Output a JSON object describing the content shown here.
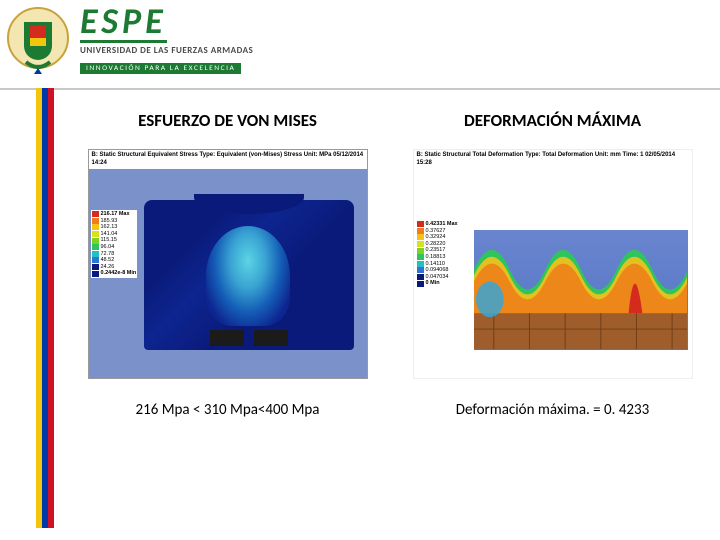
{
  "header": {
    "brand": "ESPE",
    "subtitle": "UNIVERSIDAD DE LAS FUERZAS ARMADAS",
    "tagline": "INNOVACIÓN PARA LA EXCELENCIA",
    "brand_color": "#1d7a33"
  },
  "stripe_colors": {
    "yellow": "#f3c60d",
    "blue": "#0038a8",
    "red": "#ce1126"
  },
  "left": {
    "title": "ESFUERZO DE VON MISES",
    "sim_header": "B: Static Structural\nEquivalent Stress\nType: Equivalent (von-Mises) Stress\nUnit: MPa\n05/12/2014 14:24",
    "legend": {
      "max_label": "216.17 Max",
      "min_label": "0.2442e-8 Min",
      "items": [
        {
          "color": "#d52b1e",
          "label": "216.17"
        },
        {
          "color": "#f07d1a",
          "label": "185.93"
        },
        {
          "color": "#f6c21a",
          "label": "162.13"
        },
        {
          "color": "#d8e21a",
          "label": "141.04"
        },
        {
          "color": "#7ed321",
          "label": "115.15"
        },
        {
          "color": "#2fc45d",
          "label": "96.04"
        },
        {
          "color": "#1fc1c9",
          "label": "72.78"
        },
        {
          "color": "#2f74d0",
          "label": "48.52"
        },
        {
          "color": "#0a1a7a",
          "label": "24.26"
        }
      ]
    },
    "caption": "216 Mpa < 310 Mpa<400 Mpa",
    "background_color": "#7b91c9"
  },
  "right": {
    "title": "DEFORMACIÓN MÁXIMA",
    "sim_header": "B: Static Structural\nTotal Deformation\nType: Total Deformation\nUnit: mm\nTime: 1\n02/05/2014 15:28",
    "legend": {
      "max_label": "0.42331 Max",
      "min_label": "0 Min",
      "items": [
        {
          "color": "#d52b1e",
          "label": "0.42331"
        },
        {
          "color": "#f07d1a",
          "label": "0.37627"
        },
        {
          "color": "#f6c21a",
          "label": "0.32924"
        },
        {
          "color": "#d8e21a",
          "label": "0.28220"
        },
        {
          "color": "#7ed321",
          "label": "0.23517"
        },
        {
          "color": "#2fc45d",
          "label": "0.18813"
        },
        {
          "color": "#1fc1c9",
          "label": "0.14110"
        },
        {
          "color": "#2f74d0",
          "label": "0.094068"
        },
        {
          "color": "#0a1a7a",
          "label": "0.047034"
        }
      ]
    },
    "caption": "Deformación máxima. = 0. 4233",
    "background_color": "#ffffff"
  }
}
